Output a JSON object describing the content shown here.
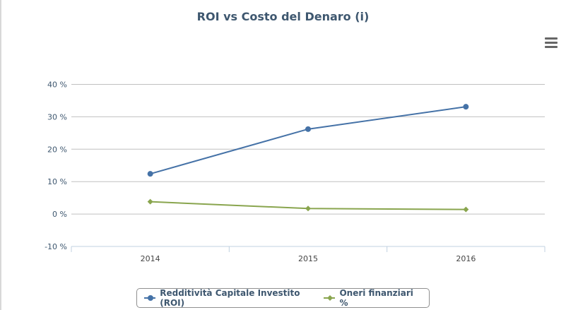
{
  "chart_data": {
    "type": "line",
    "title": "ROI vs Costo del Denaro (i)",
    "categories": [
      "2014",
      "2015",
      "2016"
    ],
    "series": [
      {
        "name": "Redditività Capitale Investito (ROI)",
        "values": [
          12.4,
          26.2,
          33.1
        ],
        "color": "#4572a7",
        "marker": "circle"
      },
      {
        "name": "Oneri finanziari %",
        "values": [
          3.8,
          1.7,
          1.4
        ],
        "color": "#89a54e",
        "marker": "diamond"
      }
    ],
    "ylim": [
      -10,
      40
    ],
    "yticks": [
      -10,
      0,
      10,
      20,
      30,
      40
    ],
    "ytick_labels": [
      "-10 %",
      "0 %",
      "10 %",
      "20 %",
      "30 %",
      "40 %"
    ],
    "grid": true,
    "legend": "bottom"
  },
  "menu_icon": "hamburger-menu-icon"
}
